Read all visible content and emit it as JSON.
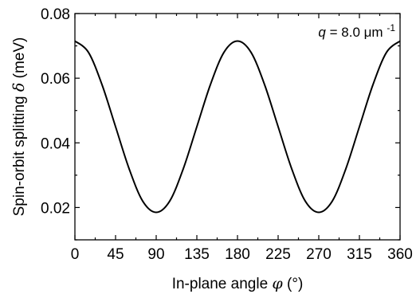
{
  "chart_data": {
    "type": "line",
    "xlabel": "In-plane angle",
    "xlabel_symbol": "φ",
    "xlabel_unit": "(°)",
    "ylabel": "Spin-orbit splitting",
    "ylabel_symbol": "δ",
    "ylabel_unit": "(meV)",
    "xlim": [
      0,
      360
    ],
    "ylim": [
      0.01,
      0.08
    ],
    "xticks": [
      0,
      45,
      90,
      135,
      180,
      225,
      270,
      315,
      360
    ],
    "yticks": [
      0.02,
      0.04,
      0.06,
      0.08
    ],
    "ytick_labels": [
      "0.02",
      "0.04",
      "0.06",
      "0.08"
    ],
    "grid": false,
    "annotation": {
      "var": "q",
      "value": "= 8.0 μm",
      "exponent": "-1"
    },
    "series": [
      {
        "x": [
          0,
          15,
          30,
          45,
          60,
          75,
          90,
          105,
          120,
          135,
          150,
          165,
          180,
          195,
          210,
          225,
          240,
          255,
          270,
          285,
          300,
          315,
          330,
          345,
          360
        ],
        "y": [
          0.0715,
          0.068,
          0.058,
          0.045,
          0.032,
          0.022,
          0.0185,
          0.022,
          0.032,
          0.045,
          0.058,
          0.068,
          0.0715,
          0.068,
          0.058,
          0.045,
          0.032,
          0.022,
          0.0185,
          0.022,
          0.032,
          0.045,
          0.058,
          0.068,
          0.0715
        ],
        "color": "#000000"
      }
    ]
  }
}
